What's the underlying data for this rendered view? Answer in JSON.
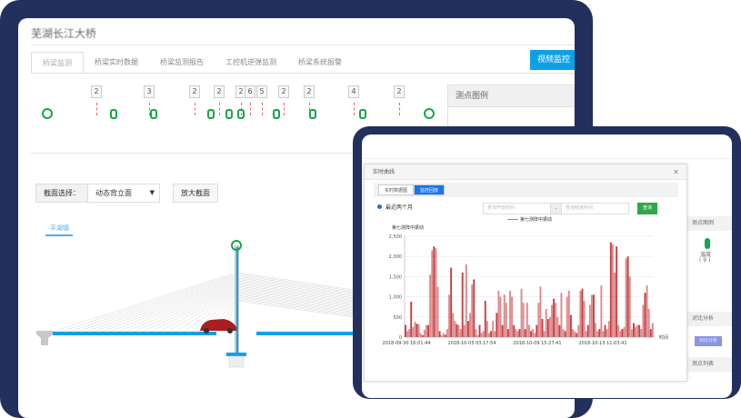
{
  "main_window": {
    "title": "芜湖长江大桥",
    "tabs": [
      {
        "label": "桥梁监测",
        "active": true
      },
      {
        "label": "桥梁实时数据"
      },
      {
        "label": "桥梁监测报告"
      },
      {
        "label": "工控机逆弹监测"
      },
      {
        "label": "桥梁系统报警"
      }
    ],
    "video_button": "视频监控",
    "sensor_counts": [
      "2",
      "3",
      "2",
      "2",
      "2",
      "6",
      "5",
      "2",
      "2",
      "4",
      "2"
    ],
    "legend_title": "测点图例",
    "section_label": "截面选择：",
    "section_value": "动态背立面",
    "zoom_button": "放大截面",
    "direction_label": "平湖镇",
    "colors": {
      "accent": "#0ea0e6",
      "sensor": "#1aa34a",
      "frame": "#22305e",
      "deck": "#0ea0e6"
    }
  },
  "side_panel": {
    "analysis_header": "对比分析",
    "temp_label": "温度",
    "temp_count": "( 9 )",
    "compare_button": "对比分析",
    "list_header": "测点列表",
    "legend_header": "测点图例"
  },
  "modal": {
    "title": "实时曲线",
    "tabs": [
      {
        "label": "实时数据图"
      },
      {
        "label": "监控回放",
        "active": true
      }
    ],
    "radio_label": "最近两个月",
    "start_placeholder": "查询开始时间",
    "separator": "-",
    "end_placeholder": "查询结束时间",
    "query_button": "查询"
  },
  "chart_data": {
    "type": "bar",
    "legend": [
      "第七测阵中振动"
    ],
    "ylabel": "第七测阵中振动",
    "xlabel": "时间",
    "ylim": [
      0,
      2500
    ],
    "yticks": [
      "0",
      "500",
      "1,000",
      "1,500",
      "2,000",
      "2,500"
    ],
    "xticks": [
      "2018-09-30 16:01:44",
      "2018-10-05 03:17:54",
      "2018-10-09 15:27:41",
      "2018-10-15 11:03:41"
    ],
    "color": "#c0282d",
    "grid": true,
    "values": [
      300,
      150,
      200,
      880,
      250,
      380,
      330,
      320,
      100,
      50,
      180,
      300,
      300,
      1550,
      2150,
      2250,
      2200,
      1250,
      150,
      50,
      100,
      60,
      200,
      1050,
      1720,
      600,
      400,
      320,
      300,
      200,
      1600,
      300,
      1800,
      400,
      600,
      1300,
      1430,
      200,
      50,
      300,
      100,
      150,
      900,
      400,
      100,
      150,
      400,
      150,
      600,
      1150,
      1000,
      300,
      1050,
      850,
      200,
      1150,
      1000,
      300,
      200,
      150,
      200,
      1200,
      850,
      200,
      850,
      300,
      150,
      200,
      100,
      300,
      850,
      1250,
      450,
      150,
      700,
      450,
      500,
      800,
      950,
      850,
      500,
      300,
      1100,
      200,
      150,
      1000,
      1150,
      550,
      200,
      150,
      100,
      300,
      1150,
      1200,
      900,
      150,
      300,
      800,
      1050,
      1050,
      350,
      150,
      200,
      1280,
      150,
      300,
      200,
      400,
      2350,
      2300,
      1600,
      2250,
      300,
      150,
      200,
      250,
      1950,
      2000,
      1500,
      200,
      350,
      250,
      300,
      300,
      200,
      800,
      1100,
      1280,
      700,
      200,
      350
    ]
  }
}
